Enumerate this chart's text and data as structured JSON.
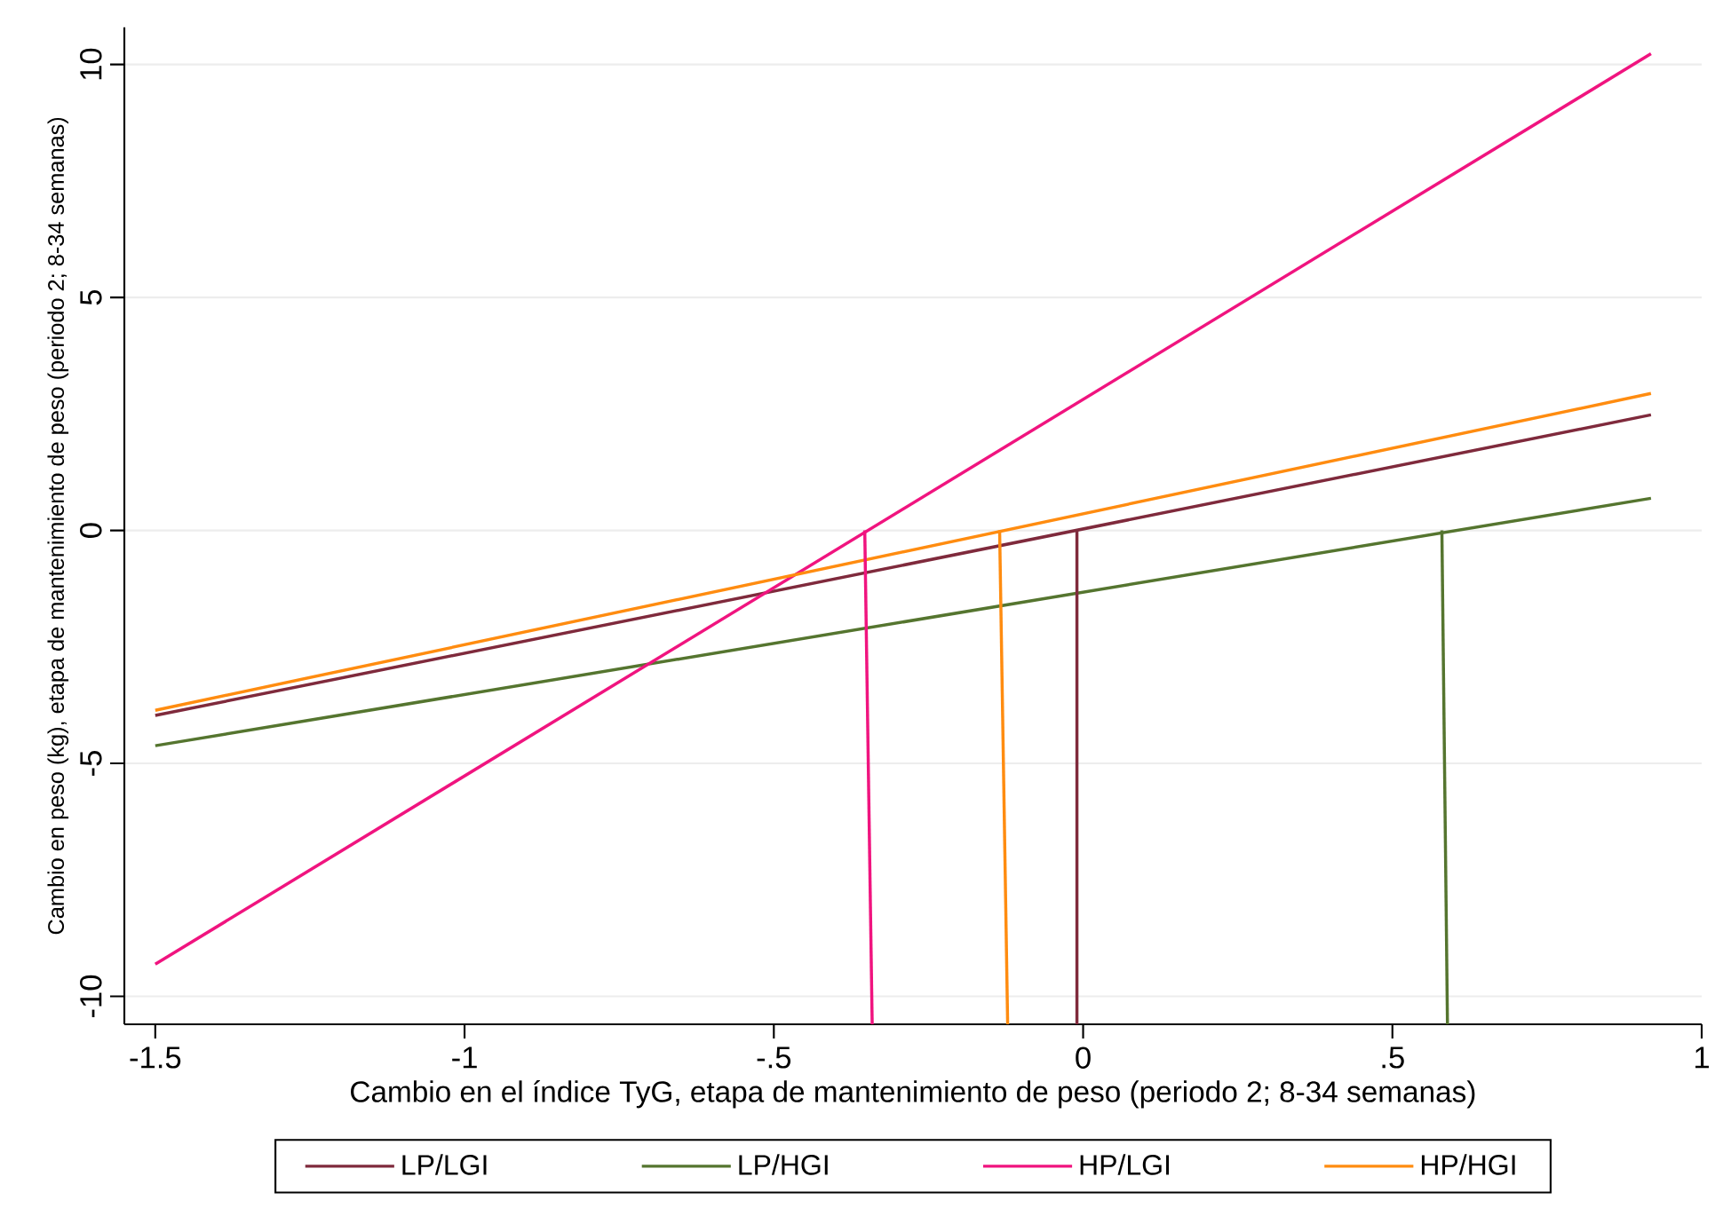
{
  "chart_data": {
    "type": "line",
    "xlabel": "Cambio en el índice TyG, etapa de mantenimiento de peso (periodo 2; 8-34 semanas)",
    "ylabel": "Cambio en peso (kg), etapa de mantenimiento de peso (periodo 2; 8-34 semanas)",
    "xlim": [
      -1.55,
      1
    ],
    "ylim": [
      -10.6,
      10.8
    ],
    "xticks": [
      -1.5,
      -1,
      {
        "value": -0.5,
        "label": "-.5"
      },
      0,
      {
        "value": 0.5,
        "label": ".5"
      },
      1
    ],
    "yticks": [
      -10,
      -5,
      0,
      5,
      10
    ],
    "grid": "y",
    "legend": "bottom",
    "marker": "none",
    "line_style": "solid",
    "series": [
      {
        "name": "LP/LGI",
        "color": "#7f2a3c",
        "x": [
          -1.5,
          0.918
        ],
        "values": [
          -3.97,
          2.48
        ]
      },
      {
        "name": "LP/HGI",
        "color": "#55752f",
        "x": [
          -1.5,
          0.918
        ],
        "values": [
          -4.62,
          0.69
        ]
      },
      {
        "name": "HP/LGI",
        "color": "#f0147f",
        "x": [
          -1.5,
          0.918
        ],
        "values": [
          -9.31,
          10.23
        ]
      },
      {
        "name": "HP/HGI",
        "color": "#ff8c10",
        "x": [
          -1.5,
          0.918
        ],
        "values": [
          -3.86,
          2.94
        ]
      },
      {
        "color": "#7f2a3c",
        "x": [
          -0.01,
          -0.01
        ],
        "values": [
          0,
          -10.6
        ]
      },
      {
        "color": "#55752f",
        "x": [
          0.58,
          0.589
        ],
        "values": [
          0,
          -10.6
        ]
      },
      {
        "color": "#f0147f",
        "x": [
          -0.353,
          -0.341
        ],
        "values": [
          0,
          -10.6
        ]
      },
      {
        "color": "#ff8c10",
        "x": [
          -0.135,
          -0.122
        ],
        "values": [
          0,
          -10.6
        ]
      }
    ]
  }
}
